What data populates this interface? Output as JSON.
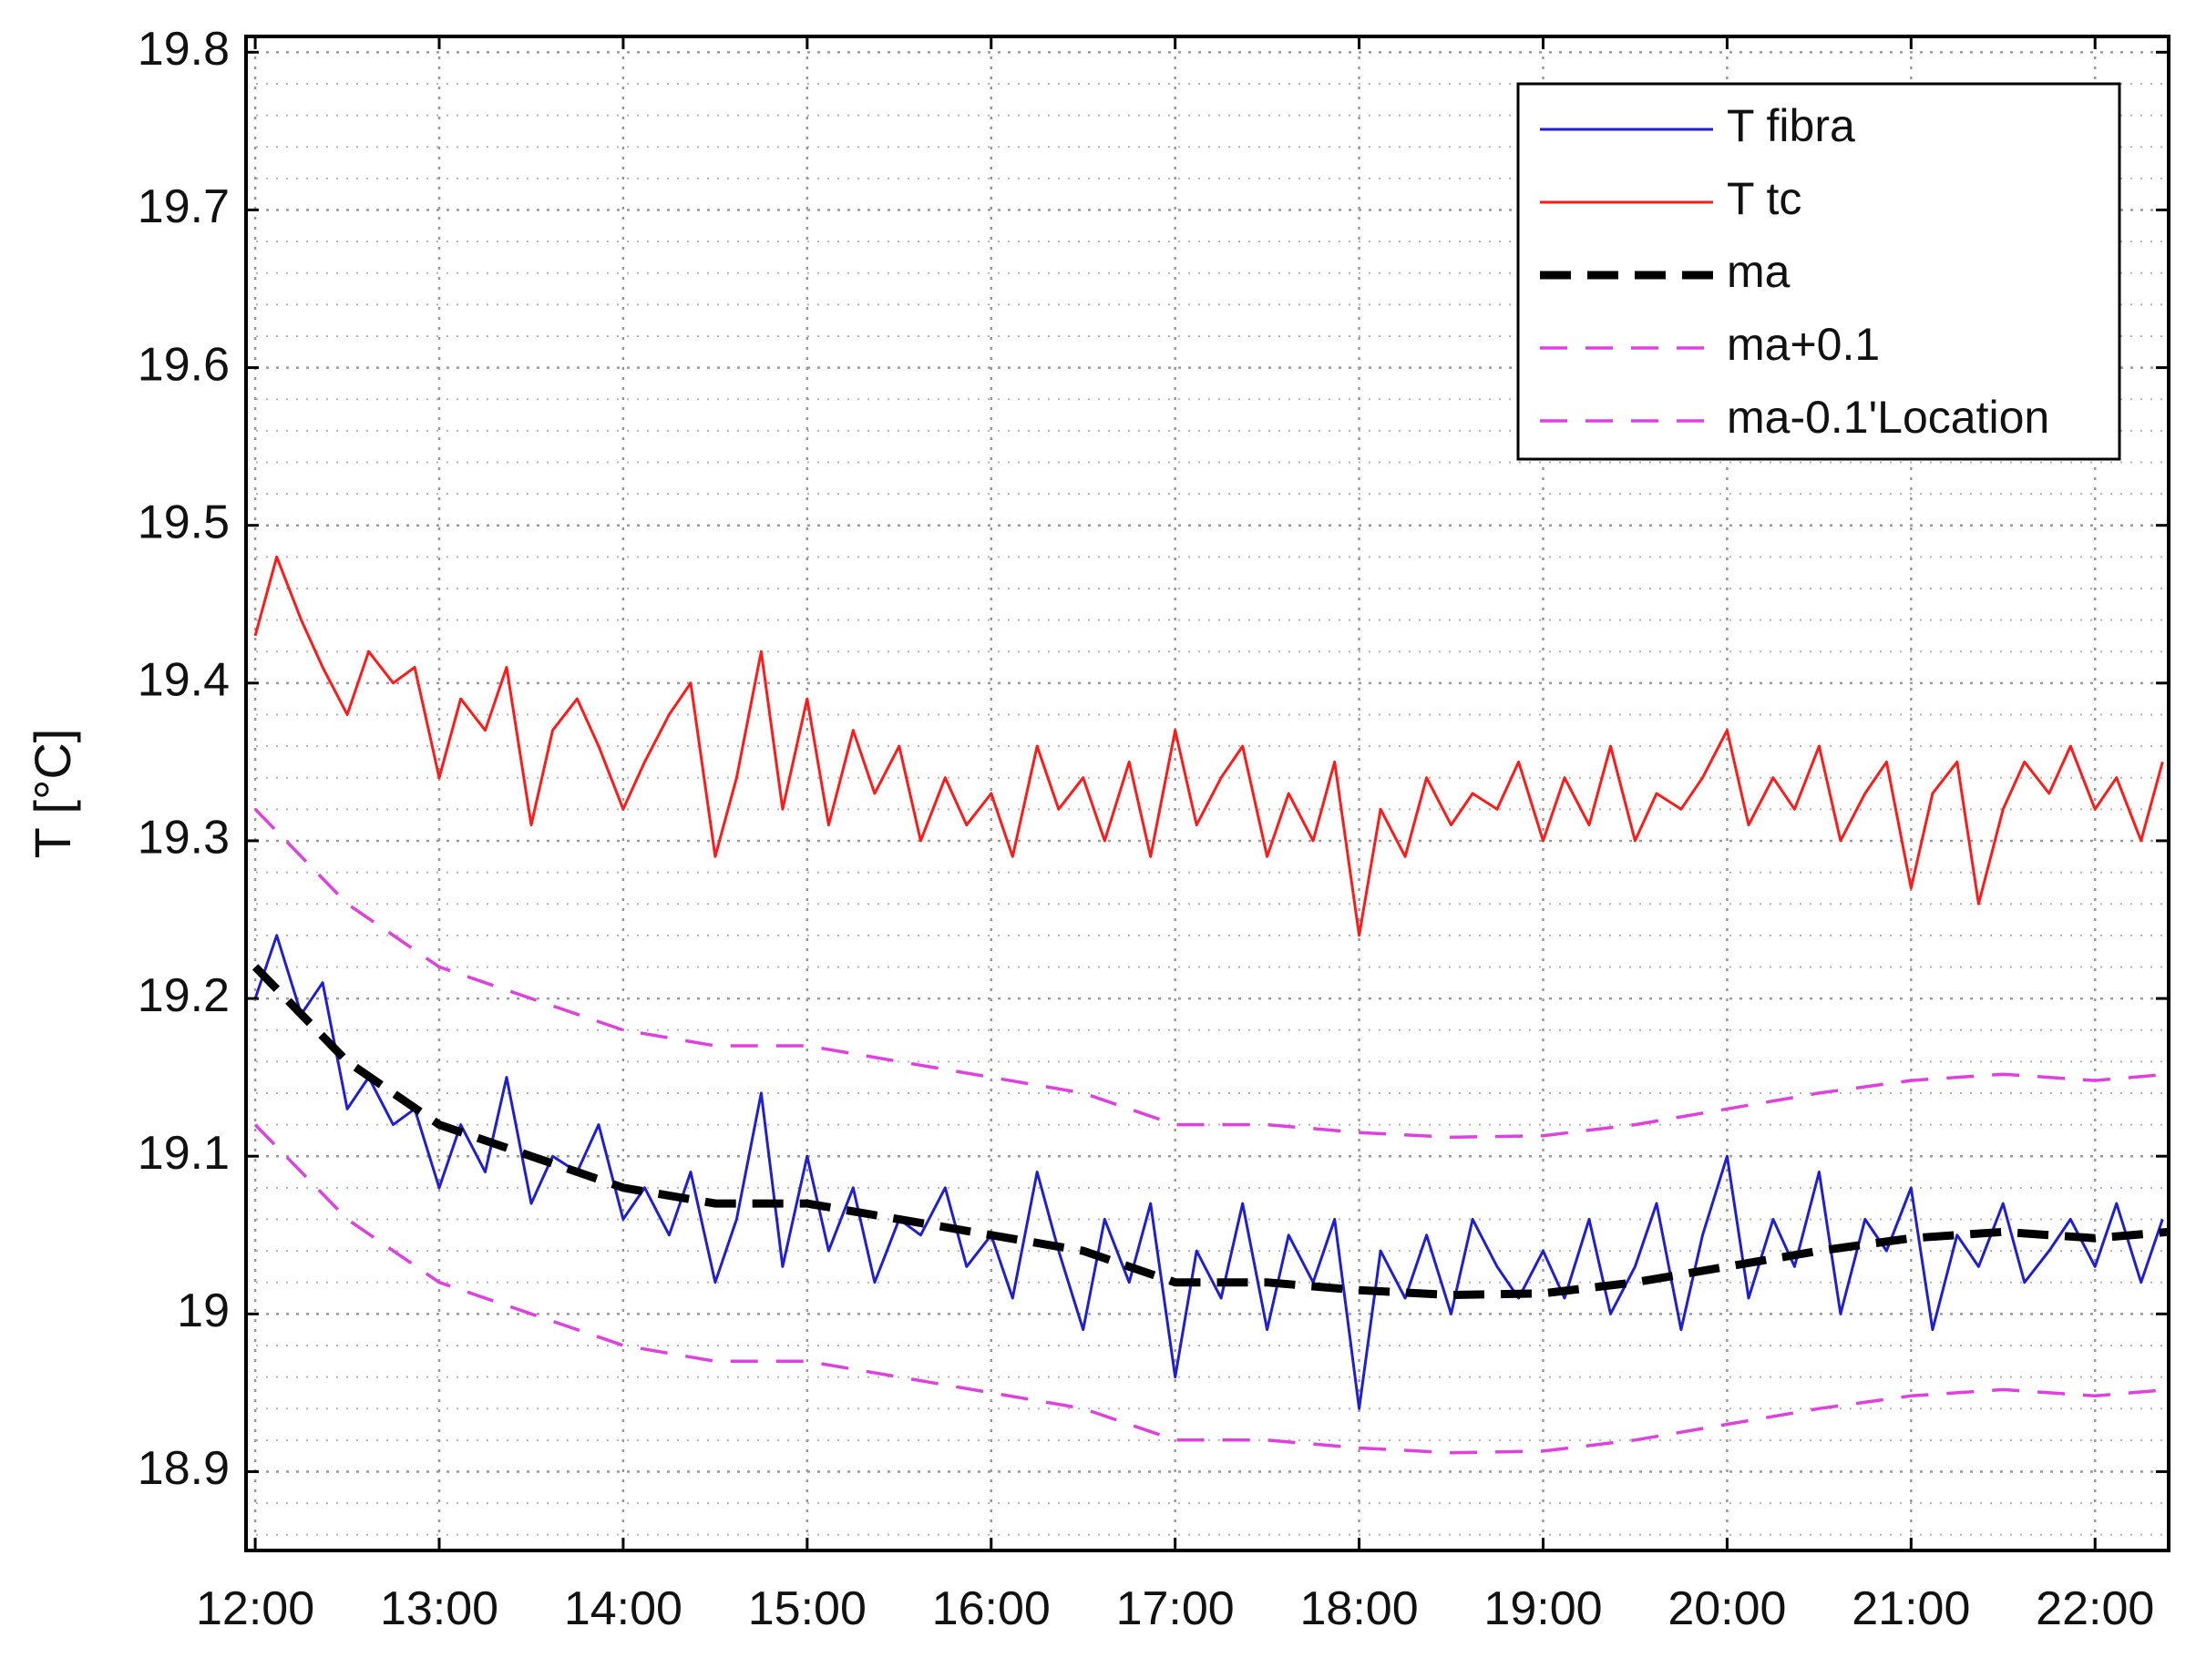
{
  "chart_data": {
    "type": "line",
    "title": "",
    "xlabel": "",
    "ylabel": "T [°C]",
    "xlim": [
      "11:57",
      "22:24"
    ],
    "ylim": [
      18.85,
      19.81
    ],
    "grid": true,
    "grid_style": "dotted major and minor",
    "legend_position": "top-right",
    "x_ticks": [
      "12:00",
      "13:00",
      "14:00",
      "15:00",
      "16:00",
      "17:00",
      "18:00",
      "19:00",
      "20:00",
      "21:00",
      "22:00"
    ],
    "y_ticks": [
      "18.9",
      "19",
      "19.1",
      "19.2",
      "19.3",
      "19.4",
      "19.5",
      "19.6",
      "19.7",
      "19.8"
    ],
    "colors": {
      "t_fibra": "#1f1fd0",
      "t_tc": "#ff1a1a",
      "ma": "#000000",
      "ma_band": "#e040e0",
      "frame": "#000000",
      "grid": "#9a9a9a"
    },
    "series": [
      {
        "name": "T fibra",
        "key": "t_fibra",
        "style": "solid",
        "x": [
          "12:00",
          "12:07",
          "12:15",
          "12:22",
          "12:30",
          "12:37",
          "12:45",
          "12:52",
          "13:00",
          "13:07",
          "13:15",
          "13:22",
          "13:30",
          "13:37",
          "13:45",
          "13:52",
          "14:00",
          "14:07",
          "14:15",
          "14:22",
          "14:30",
          "14:37",
          "14:45",
          "14:52",
          "15:00",
          "15:07",
          "15:15",
          "15:22",
          "15:30",
          "15:37",
          "15:45",
          "15:52",
          "16:00",
          "16:07",
          "16:15",
          "16:22",
          "16:30",
          "16:37",
          "16:45",
          "16:52",
          "17:00",
          "17:07",
          "17:15",
          "17:22",
          "17:30",
          "17:37",
          "17:45",
          "17:52",
          "18:00",
          "18:07",
          "18:15",
          "18:22",
          "18:30",
          "18:37",
          "18:45",
          "18:52",
          "19:00",
          "19:07",
          "19:15",
          "19:22",
          "19:30",
          "19:37",
          "19:45",
          "19:52",
          "20:00",
          "20:07",
          "20:15",
          "20:22",
          "20:30",
          "20:37",
          "20:45",
          "20:52",
          "21:00",
          "21:07",
          "21:15",
          "21:22",
          "21:30",
          "21:37",
          "21:45",
          "21:52",
          "22:00",
          "22:07",
          "22:15",
          "22:22"
        ],
        "y": [
          19.2,
          19.24,
          19.19,
          19.21,
          19.13,
          19.15,
          19.12,
          19.13,
          19.08,
          19.12,
          19.09,
          19.15,
          19.07,
          19.1,
          19.09,
          19.12,
          19.06,
          19.08,
          19.05,
          19.09,
          19.02,
          19.06,
          19.14,
          19.03,
          19.1,
          19.04,
          19.08,
          19.02,
          19.06,
          19.05,
          19.08,
          19.03,
          19.05,
          19.01,
          19.09,
          19.04,
          18.99,
          19.06,
          19.02,
          19.07,
          18.96,
          19.04,
          19.01,
          19.07,
          18.99,
          19.05,
          19.02,
          19.06,
          18.94,
          19.04,
          19.01,
          19.05,
          19.0,
          19.06,
          19.03,
          19.01,
          19.04,
          19.01,
          19.06,
          19.0,
          19.03,
          19.07,
          18.99,
          19.05,
          19.1,
          19.01,
          19.06,
          19.03,
          19.09,
          19.0,
          19.06,
          19.04,
          19.08,
          18.99,
          19.05,
          19.03,
          19.07,
          19.02,
          19.04,
          19.06,
          19.03,
          19.07,
          19.02,
          19.06
        ]
      },
      {
        "name": "T tc",
        "key": "t_tc",
        "style": "solid",
        "x": [
          "12:00",
          "12:07",
          "12:15",
          "12:22",
          "12:30",
          "12:37",
          "12:45",
          "12:52",
          "13:00",
          "13:07",
          "13:15",
          "13:22",
          "13:30",
          "13:37",
          "13:45",
          "13:52",
          "14:00",
          "14:07",
          "14:15",
          "14:22",
          "14:30",
          "14:37",
          "14:45",
          "14:52",
          "15:00",
          "15:07",
          "15:15",
          "15:22",
          "15:30",
          "15:37",
          "15:45",
          "15:52",
          "16:00",
          "16:07",
          "16:15",
          "16:22",
          "16:30",
          "16:37",
          "16:45",
          "16:52",
          "17:00",
          "17:07",
          "17:15",
          "17:22",
          "17:30",
          "17:37",
          "17:45",
          "17:52",
          "18:00",
          "18:07",
          "18:15",
          "18:22",
          "18:30",
          "18:37",
          "18:45",
          "18:52",
          "19:00",
          "19:07",
          "19:15",
          "19:22",
          "19:30",
          "19:37",
          "19:45",
          "19:52",
          "20:00",
          "20:07",
          "20:15",
          "20:22",
          "20:30",
          "20:37",
          "20:45",
          "20:52",
          "21:00",
          "21:07",
          "21:15",
          "21:22",
          "21:30",
          "21:37",
          "21:45",
          "21:52",
          "22:00",
          "22:07",
          "22:15",
          "22:22"
        ],
        "y": [
          19.43,
          19.48,
          19.44,
          19.41,
          19.38,
          19.42,
          19.4,
          19.41,
          19.34,
          19.39,
          19.37,
          19.41,
          19.31,
          19.37,
          19.39,
          19.36,
          19.32,
          19.35,
          19.38,
          19.4,
          19.29,
          19.34,
          19.42,
          19.32,
          19.39,
          19.31,
          19.37,
          19.33,
          19.36,
          19.3,
          19.34,
          19.31,
          19.33,
          19.29,
          19.36,
          19.32,
          19.34,
          19.3,
          19.35,
          19.29,
          19.37,
          19.31,
          19.34,
          19.36,
          19.29,
          19.33,
          19.3,
          19.35,
          19.24,
          19.32,
          19.29,
          19.34,
          19.31,
          19.33,
          19.32,
          19.35,
          19.3,
          19.34,
          19.31,
          19.36,
          19.3,
          19.33,
          19.32,
          19.34,
          19.37,
          19.31,
          19.34,
          19.32,
          19.36,
          19.3,
          19.33,
          19.35,
          19.27,
          19.33,
          19.35,
          19.26,
          19.32,
          19.35,
          19.33,
          19.36,
          19.32,
          19.34,
          19.3,
          19.35
        ]
      },
      {
        "name": "ma",
        "key": "ma",
        "style": "thick-dashed",
        "x": [
          "12:00",
          "12:30",
          "13:00",
          "13:30",
          "14:00",
          "14:30",
          "15:00",
          "15:30",
          "16:00",
          "16:30",
          "17:00",
          "17:30",
          "18:00",
          "18:30",
          "19:00",
          "19:30",
          "20:00",
          "20:30",
          "21:00",
          "21:30",
          "22:00",
          "22:24"
        ],
        "y": [
          19.22,
          19.16,
          19.12,
          19.1,
          19.08,
          19.07,
          19.07,
          19.06,
          19.05,
          19.04,
          19.02,
          19.02,
          19.015,
          19.012,
          19.013,
          19.02,
          19.03,
          19.04,
          19.048,
          19.052,
          19.048,
          19.052
        ]
      },
      {
        "name": "ma+0.1",
        "key": "ma_band",
        "style": "dashed",
        "x": [
          "12:00",
          "12:30",
          "13:00",
          "13:30",
          "14:00",
          "14:30",
          "15:00",
          "15:30",
          "16:00",
          "16:30",
          "17:00",
          "17:30",
          "18:00",
          "18:30",
          "19:00",
          "19:30",
          "20:00",
          "20:30",
          "21:00",
          "21:30",
          "22:00",
          "22:24"
        ],
        "y": [
          19.32,
          19.26,
          19.22,
          19.2,
          19.18,
          19.17,
          19.17,
          19.16,
          19.15,
          19.14,
          19.12,
          19.12,
          19.115,
          19.112,
          19.113,
          19.12,
          19.13,
          19.14,
          19.148,
          19.152,
          19.148,
          19.152
        ]
      },
      {
        "name": "ma-0.1'Location",
        "key": "ma_band",
        "style": "dashed",
        "x": [
          "12:00",
          "12:30",
          "13:00",
          "13:30",
          "14:00",
          "14:30",
          "15:00",
          "15:30",
          "16:00",
          "16:30",
          "17:00",
          "17:30",
          "18:00",
          "18:30",
          "19:00",
          "19:30",
          "20:00",
          "20:30",
          "21:00",
          "21:30",
          "22:00",
          "22:24"
        ],
        "y": [
          19.12,
          19.06,
          19.02,
          19.0,
          18.98,
          18.97,
          18.97,
          18.96,
          18.95,
          18.94,
          18.92,
          18.92,
          18.915,
          18.912,
          18.913,
          18.92,
          18.93,
          18.94,
          18.948,
          18.952,
          18.948,
          18.952
        ]
      }
    ]
  }
}
